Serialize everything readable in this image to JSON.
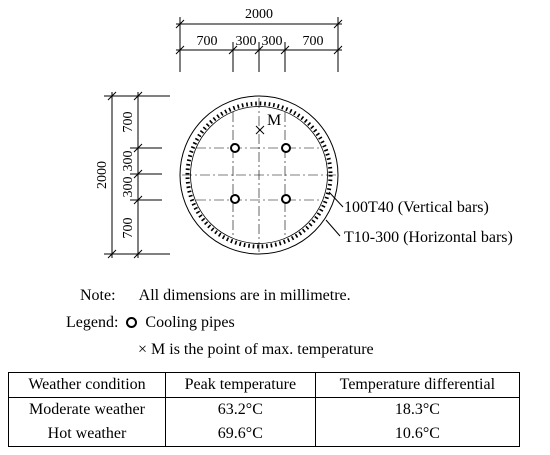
{
  "dimensions": {
    "top_total": "2000",
    "top_segments": [
      "700",
      "300",
      "300",
      "700"
    ],
    "left_total": "2000",
    "left_segments": [
      "700",
      "300",
      "300",
      "700"
    ]
  },
  "labels": {
    "point_m": "M",
    "vertical_bars": "100T40 (Vertical bars)",
    "horizontal_bars": "T10-300 (Horizontal bars)"
  },
  "notes": {
    "note_label": "Note:",
    "note_text": "All dimensions are in millimetre.",
    "legend_label": "Legend:",
    "pipes_text": "Cooling pipes",
    "m_symbol": "×",
    "m_text": "M is the point of max. temperature"
  },
  "table": {
    "headers": [
      "Weather condition",
      "Peak temperature",
      "Temperature differential"
    ],
    "rows": [
      [
        "Moderate weather",
        "63.2°C",
        "18.3°C"
      ],
      [
        "Hot weather",
        "69.6°C",
        "10.6°C"
      ]
    ]
  }
}
